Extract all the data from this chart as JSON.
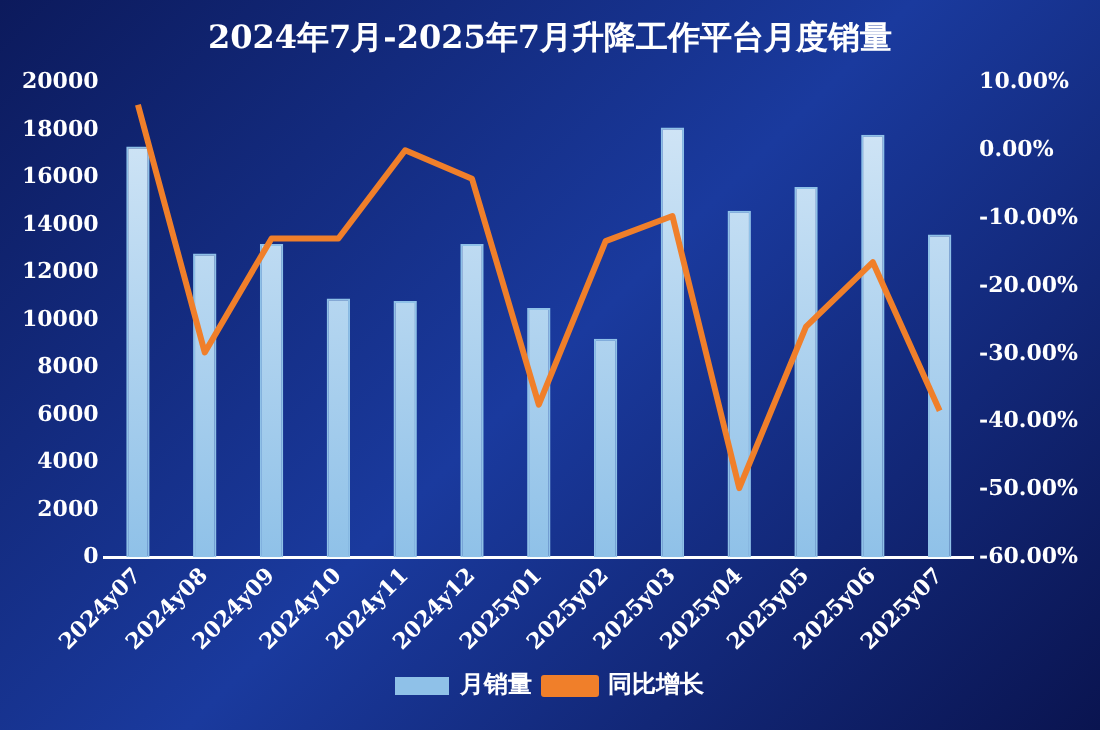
{
  "chart_data": {
    "type": "bar",
    "title": "2024年7月-2025年7月升降工作平台月度销量",
    "categories": [
      "2024y07",
      "2024y08",
      "2024y09",
      "2024y10",
      "2024y11",
      "2024y12",
      "2025y01",
      "2025y02",
      "2025y03",
      "2025y04",
      "2025y05",
      "2025y06",
      "2025y07"
    ],
    "series": [
      {
        "name": "月销量",
        "color": "#8fc1e8",
        "values": [
          17300,
          12800,
          13200,
          10900,
          10800,
          13200,
          10500,
          9200,
          18100,
          14600,
          15600,
          17800,
          13600
        ]
      },
      {
        "name": "同比增长",
        "type": "line",
        "axis": "y2",
        "color": "#f07f2a",
        "values": [
          6.7,
          -29.8,
          -13,
          -13,
          0,
          -4.2,
          -37.5,
          -13.4,
          -9.7,
          -49.8,
          -26,
          -16.5,
          -38.4
        ]
      }
    ],
    "ylim": [
      0,
      20000
    ],
    "yticks": [
      0,
      2000,
      4000,
      6000,
      8000,
      10000,
      12000,
      14000,
      16000,
      18000,
      20000
    ],
    "y2lim": [
      -60,
      10
    ],
    "y2ticks": [
      {
        "value": -60,
        "label": "-60.00%"
      },
      {
        "value": -50,
        "label": "-50.00%"
      },
      {
        "value": -40,
        "label": "-40.00%"
      },
      {
        "value": -30,
        "label": "-30.00%"
      },
      {
        "value": -20,
        "label": "-20.00%"
      },
      {
        "value": -10,
        "label": "-10.00%"
      },
      {
        "value": 0,
        "label": "0.00%"
      },
      {
        "value": 10,
        "label": "10.00%"
      }
    ],
    "grid": false,
    "legend": "bottom",
    "marker": "none"
  }
}
